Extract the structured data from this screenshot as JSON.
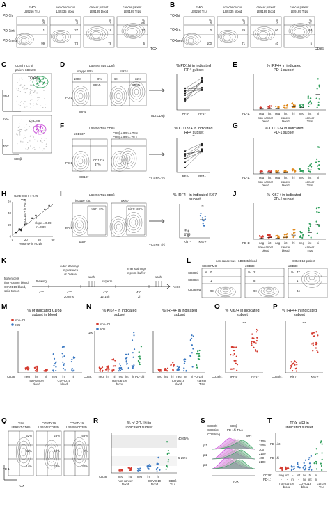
{
  "colors": {
    "red": "#d43a2f",
    "orange": "#e08a1e",
    "green": "#2e9e5a",
    "blue": "#3a78c2",
    "pink": "#e35bd3",
    "magenta": "#c43bd6"
  },
  "panels": [
    "A",
    "B",
    "C",
    "D",
    "E",
    "F",
    "G",
    "H",
    "I",
    "J",
    "K",
    "L",
    "M",
    "N",
    "O",
    "P",
    "Q",
    "R",
    "S",
    "T"
  ],
  "A": {
    "samples": [
      "FMO\nLB9256 TILs",
      "non-cancerous\nLB9335 blood",
      "cancer patient\nLB9189 blood",
      "cancer patient\nLB9189 TILs"
    ],
    "row_labels": [
      "PD-1hi",
      "PD-1int",
      "PD-1neg"
    ],
    "pct_hi": [
      "0",
      "0",
      "2",
      "66"
    ],
    "pct_int": [
      "1",
      "27",
      "18",
      "27"
    ],
    "pct_neg": [
      "99",
      "73",
      "78",
      "6"
    ],
    "xlabel": "TOX",
    "pct": "%"
  },
  "B": {
    "samples": [
      "FMO\nLB9256 TILs",
      "non-cancerous\nLB9335 blood",
      "cancer patient\nLB9189 blood",
      "cancer patient\nLB9189 TILs"
    ],
    "row_labels": [
      "TOXhi",
      "TOXint",
      "TOXneg"
    ],
    "pct_hi": [
      "0",
      "0",
      "0",
      "31"
    ],
    "pct_int": [
      "0",
      "29",
      "60",
      "64"
    ],
    "pct_neg": [
      "100",
      "71",
      "40",
      "5"
    ],
    "xlabel": "CD8β",
    "pct": "%"
  },
  "C": {
    "title": "CD8β TILs of\npatient LB9189",
    "gate1": "TOXhi",
    "gate2": "PD-1hi",
    "ylab1": "PD-1",
    "xlab1": "TOX",
    "ylab2": "TOX",
    "xlab2": "CD8β"
  },
  "D": {
    "title": "LB9256 TILs CD8β",
    "sub1": "isotype IRF4",
    "sub2": "αIRF4",
    "q1": "100%",
    "q2": "0%",
    "q3": "6%",
    "q4": "32%",
    "g1": "IRF4-",
    "g2": "IRF4+",
    "ylab": "PD-1",
    "xlab": "IRF4",
    "footer": "TILs CD8β",
    "chart_title": "% PD1hi in indicated\nIRF4 subset",
    "cats": [
      "IRF4-",
      "IRF4+"
    ],
    "sig": "**"
  },
  "E": {
    "title": "% IRF4+ in indicated\nPD-1 subset",
    "groups": [
      "non-cancer\nblood",
      "cancer\nblood",
      "cancer\nTILs"
    ],
    "cats": [
      "neg",
      "int",
      "neg",
      "int",
      "hi",
      "neg",
      "int",
      "hi"
    ],
    "rowlab": "PD-1:"
  },
  "F": {
    "title": "LB9256 TILs CD8β",
    "sub1": "αCD137",
    "sub2": "CD8β+ IRF4+ TILs",
    "sub3": "CD8β+ IRF4- TILs",
    "q": "CD137+\n37%",
    "ylab": "PD-1",
    "xlab": "CD137",
    "footer": "TILs PD-1hi",
    "chart_title": "% CD137+ in indicated\nIRF4 subset",
    "cats": [
      "IRF4-",
      "IRF4+"
    ],
    "sig": "**"
  },
  "G": {
    "title": "% CD137+ in indicated\nPD-1 subset",
    "groups": [
      "non-cancer\nblood",
      "cancer\nblood",
      "cancer\nTILs"
    ],
    "cats": [
      "neg",
      "int",
      "neg",
      "int",
      "hi",
      "neg",
      "int",
      "hi"
    ],
    "rowlab": "PD-1:"
  },
  "H": {
    "stat1": "spearman r = 0,95",
    "stat2": "****",
    "stat3": "slope = 0.89",
    "stat4": "r²=0,89",
    "ylab": "%CD137+ in PD1hi",
    "xlab": "%IRF4+ in PD1hi",
    "xticks": [
      "0",
      "20",
      "40",
      "60"
    ],
    "yticks": [
      "0",
      "20",
      "40",
      "60"
    ]
  },
  "I": {
    "title": "LB9256 TILs CD8β",
    "sub1": "isotype Ki67",
    "sub2": "αKi67",
    "g1": "Ki67+ 0%",
    "g2": "Ki67+ 39%",
    "ylab": "PD-1",
    "xlab": "Ki67",
    "footer": "TILs PD-1hi",
    "chart_title": "% IRF4+ in indicated Ki67\nsubset",
    "cats": [
      "Ki67-",
      "Ki67+"
    ],
    "sig": "**"
  },
  "J": {
    "title": "% Ki67+ in indicated\nPD-1 subset",
    "groups": [
      "non-cancer\nblood",
      "cancer\nblood",
      "cancer\nTILs"
    ],
    "cats": [
      "neg",
      "int",
      "neg",
      "int",
      "hi",
      "neg",
      "int",
      "hi"
    ],
    "rowlab": "PD-1:"
  },
  "K": {
    "start": "frozen cells\n(non-cancer blood,\nCOVID19 blood,\nsolid tumor)",
    "steps": [
      "thawing",
      "outer stainings\nin presence\nof DNase",
      "wash",
      "fix/perm",
      "inner stainings\nin perm buffer",
      "wash"
    ],
    "conds": [
      "4°C",
      "4°C\n20mins",
      "4°C\n12-16h",
      "4°C\n2h"
    ],
    "end": "FACS"
  },
  "L": {
    "samples": [
      "CD38 FMO",
      "αCD38",
      "αCD38"
    ],
    "headers": [
      "non-cancerous - LB9335 blood",
      "COVID19 patient"
    ],
    "rows": [
      "CD38hi",
      "CD38int",
      "CD38neg"
    ],
    "pct_hi": [
      "0",
      "2",
      "47"
    ],
    "pct_int": [
      "1",
      "8",
      "17"
    ],
    "pct_neg": [
      "99",
      "90",
      "34"
    ],
    "pct": "%"
  },
  "M": {
    "title": "% of indicated CD38\nsubset in blood",
    "legend": [
      "non-ICU",
      "ICU"
    ],
    "cats": [
      "neg",
      "int",
      "hi",
      "neg",
      "int",
      "hi"
    ],
    "groups": [
      "non-cancer\nblood",
      "COVID19\nblood"
    ],
    "rowlab": "CD38:"
  },
  "N": {
    "title1": "% Ki67+ in indicated\nsubset",
    "title2": "% IRF4+ in indicated\nsubset",
    "legend": [
      "non-ICU",
      "ICU"
    ],
    "cats": [
      "neg",
      "int",
      "hi",
      "neg",
      "int",
      "hi",
      "PD-1hi"
    ],
    "groups": [
      "non-cancer\nblood",
      "COVID19\nblood",
      "cancer\nTILs"
    ],
    "rowlab": "CD38:",
    "tick": "100"
  },
  "O": {
    "title": "% Ki67+ in indicated\nsubset",
    "cats": [
      "IRF4-",
      "IRF4+"
    ],
    "sig": "***",
    "rowlab": "CD38hi:"
  },
  "P": {
    "title": "% IRF4+ in indicated\nsubset",
    "cats": [
      "Ki67-",
      "Ki67+"
    ],
    "sig": "***",
    "rowlab": "CD38hi:"
  },
  "Q": {
    "samples": [
      "TILs\nLB9257 CD8β",
      "COVID-19\nLB9342 CD38hi",
      "COVID-19\nLB9309 CD38hi"
    ],
    "q_tr": [
      "52%",
      "23%",
      "58%"
    ],
    "q_mr": [
      "32%",
      "50%",
      "9%"
    ],
    "q_br": [
      "14%",
      "23%",
      "32%"
    ],
    "ylab": "PD-1",
    "xlab": "TOX"
  },
  "R": {
    "title": "% of PD-1hi in\nindicated subset",
    "bands": [
      "40-65%",
      "5-25%"
    ],
    "cats": [
      "neg",
      "int",
      "neg",
      "int",
      "hi"
    ],
    "groups": [
      "non-cancer\nblood",
      "COVID19\nblood",
      "CD8β\nTILs"
    ],
    "rowlab": "CD38:"
  },
  "S": {
    "legend": [
      "CD38hi",
      "CD38int",
      "CD38neg",
      "CD8β\nPD-1hi TILs"
    ],
    "mfi_title": "MFI",
    "rows": [
      "pt1",
      "pt2",
      "pt3"
    ],
    "mfi": [
      "2100",
      "1500",
      "300",
      "2100",
      "400",
      "2100"
    ],
    "tags": [
      "PD-1int",
      "PD-1hi"
    ],
    "xlab": "TOX"
  },
  "T": {
    "title": "TOX MFI in\nindicated subset",
    "row1": [
      "neg",
      "int",
      "hi",
      "int",
      "hi",
      "hi"
    ],
    "row2": [
      "-",
      "-",
      "int",
      "hi",
      "-",
      "int",
      "hi",
      "x"
    ],
    "groups": [
      "non-cancer\nblood",
      "COVID19\nblood",
      "cancer\nTILs"
    ],
    "rowlab1": "CD38:",
    "rowlab2": "PD-1:"
  }
}
